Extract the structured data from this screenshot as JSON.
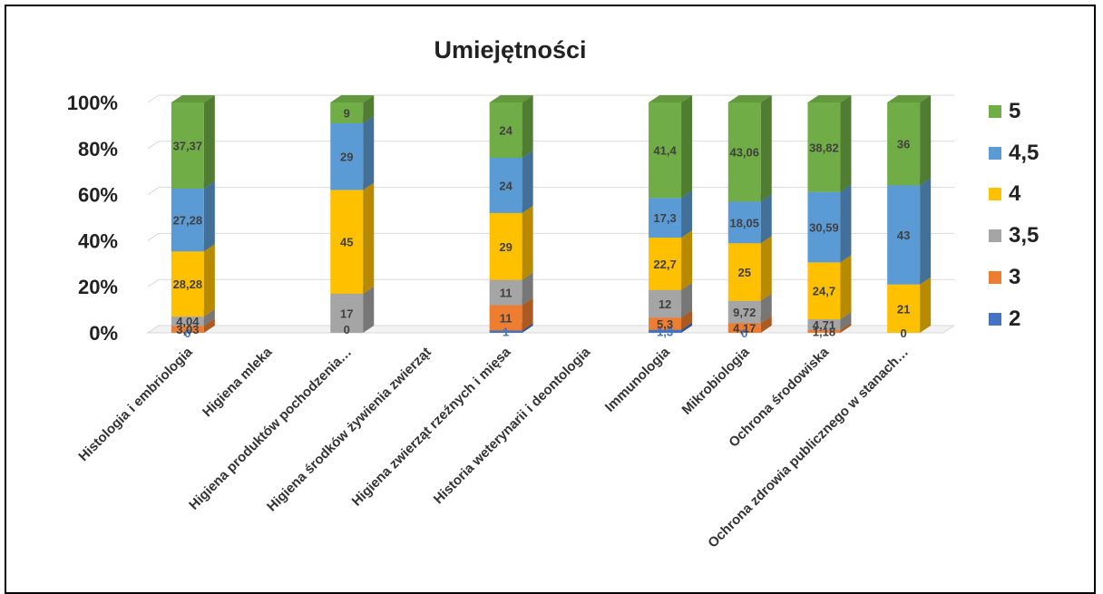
{
  "chart_data": {
    "type": "bar",
    "stacked": "percent",
    "style": "3d-column",
    "title": "Umiejętności",
    "categories": [
      "Histologia i embriologia",
      "Higiena mleka",
      "Higiena produktów pochodzenia…",
      "Higiena środków żywienia zwierząt",
      "Higiena zwierząt rzeźnych i mięsa",
      "Historia weterynarii i deontologia",
      "Immunologia",
      "Mikrobiologia",
      "Ochrona środowiska",
      "Ochrona zdrowia publicznego w stanach…"
    ],
    "series": [
      {
        "name": "2",
        "color": "#4472C4",
        "values": [
          0,
          null,
          null,
          null,
          1,
          null,
          1.3,
          0,
          0,
          null
        ],
        "labels": [
          "0",
          "",
          "",
          "",
          "1",
          "",
          "1,3",
          "0",
          "",
          ""
        ]
      },
      {
        "name": "3",
        "color": "#ED7D31",
        "values": [
          3.03,
          null,
          0,
          null,
          11,
          null,
          5.3,
          4.17,
          1.18,
          null
        ],
        "labels": [
          "3,03",
          "",
          "",
          "",
          "11",
          "",
          "5,3",
          "4,17",
          "1,18",
          ""
        ]
      },
      {
        "name": "3,5",
        "color": "#A5A5A5",
        "values": [
          4.04,
          null,
          17,
          null,
          11,
          null,
          12,
          9.72,
          4.71,
          0
        ],
        "labels": [
          "4,04",
          "",
          "17",
          "",
          "11",
          "",
          "12",
          "9,72",
          "4,71",
          "0"
        ]
      },
      {
        "name": "4",
        "color": "#FFC000",
        "values": [
          28.28,
          null,
          45,
          null,
          29,
          null,
          22.7,
          25,
          24.7,
          21
        ],
        "labels": [
          "28,28",
          "",
          "45",
          "",
          "29",
          "",
          "22,7",
          "25",
          "24,7",
          "21"
        ]
      },
      {
        "name": "4,5",
        "color": "#5B9BD5",
        "values": [
          27.28,
          null,
          29,
          null,
          24,
          null,
          17.3,
          18.05,
          30.59,
          43
        ],
        "labels": [
          "27,28",
          "",
          "29",
          "",
          "24",
          "",
          "17,3",
          "18,05",
          "30,59",
          "43"
        ]
      },
      {
        "name": "5",
        "color": "#70AD47",
        "values": [
          37.37,
          null,
          9,
          null,
          24,
          null,
          41.4,
          43.06,
          38.82,
          36
        ],
        "labels": [
          "37,37",
          "",
          "9",
          "",
          "24",
          "",
          "41,4",
          "43,06",
          "38,82",
          "36"
        ]
      }
    ],
    "extra_labels": [
      {
        "category_index": 2,
        "text": "0"
      }
    ],
    "y_ticks": [
      "0%",
      "20%",
      "40%",
      "60%",
      "80%",
      "100%"
    ],
    "ylim": [
      0,
      100
    ],
    "grid": true,
    "legend_position": "right"
  }
}
